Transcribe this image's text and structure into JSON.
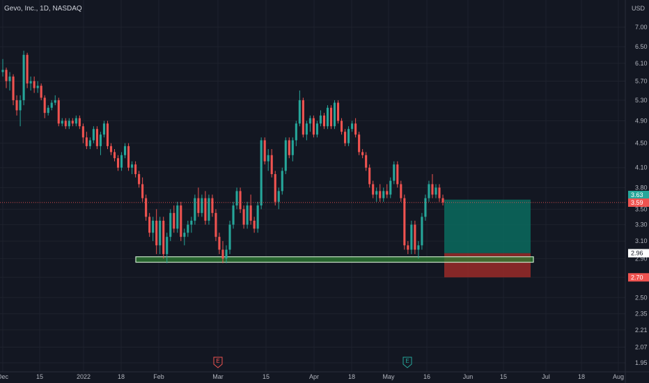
{
  "symbol_legend": "Gevo, Inc., 1D, NASDAQ",
  "currency": "USD",
  "colors": {
    "background": "#131722",
    "up": "#26a69a",
    "down": "#ef5350",
    "grid": "#1e222d",
    "profit_zone": "#0b6b5e",
    "loss_zone": "#9a2a28",
    "support_zone": "#2e7d32",
    "current_price_line": "#ef5350"
  },
  "chart_data": {
    "type": "candlestick",
    "scale": "log",
    "y_ticks": [
      "7.00",
      "6.50",
      "6.10",
      "5.70",
      "5.30",
      "4.90",
      "4.50",
      "4.10",
      "3.80",
      "3.50",
      "3.30",
      "3.10",
      "2.90",
      "2.70",
      "2.50",
      "2.35",
      "2.21",
      "2.07",
      "1.95"
    ],
    "x_ticks": [
      "Dec",
      "15",
      "2022",
      "18",
      "Feb",
      "Mar",
      "15",
      "Apr",
      "18",
      "May",
      "16",
      "Jun",
      "15",
      "Jul",
      "18",
      "Aug"
    ],
    "price_labels": [
      {
        "label": "3.63",
        "value": 3.63,
        "color": "#26a69a"
      },
      {
        "label": "3.59",
        "value": 3.59,
        "color": "#ef5350"
      },
      {
        "label": "2.96",
        "value": 2.96,
        "color": "#ffffff"
      },
      {
        "label": "2.70",
        "value": 2.7,
        "color": "#ef5350"
      }
    ],
    "last_price": 3.59,
    "support_zone": {
      "low": 2.86,
      "high": 2.92
    },
    "position": {
      "entry": 2.96,
      "target": 3.63,
      "stop": 2.7
    },
    "earnings_markers": [
      "E",
      "E"
    ],
    "candles": [
      [
        5.9,
        6.2,
        5.8,
        5.95
      ],
      [
        5.95,
        6.0,
        5.55,
        5.7
      ],
      [
        5.7,
        5.9,
        5.5,
        5.8
      ],
      [
        5.8,
        5.85,
        5.2,
        5.3
      ],
      [
        5.3,
        5.4,
        5.0,
        5.1
      ],
      [
        5.1,
        5.4,
        4.8,
        5.3
      ],
      [
        5.3,
        6.4,
        5.2,
        6.3
      ],
      [
        6.3,
        6.35,
        5.55,
        5.65
      ],
      [
        5.65,
        5.8,
        5.5,
        5.7
      ],
      [
        5.7,
        5.8,
        5.45,
        5.55
      ],
      [
        5.55,
        5.7,
        5.45,
        5.6
      ],
      [
        5.6,
        5.65,
        5.3,
        5.35
      ],
      [
        5.35,
        5.4,
        4.95,
        5.05
      ],
      [
        5.05,
        5.2,
        5.0,
        5.15
      ],
      [
        5.15,
        5.3,
        5.1,
        5.25
      ],
      [
        5.25,
        5.4,
        5.2,
        5.3
      ],
      [
        5.3,
        5.35,
        4.8,
        4.85
      ],
      [
        4.85,
        4.95,
        4.8,
        4.9
      ],
      [
        4.9,
        4.95,
        4.75,
        4.8
      ],
      [
        4.8,
        4.95,
        4.75,
        4.9
      ],
      [
        4.9,
        4.95,
        4.8,
        4.85
      ],
      [
        4.85,
        5.0,
        4.8,
        4.95
      ],
      [
        4.95,
        5.0,
        4.75,
        4.8
      ],
      [
        4.8,
        4.85,
        4.5,
        4.6
      ],
      [
        4.6,
        4.7,
        4.4,
        4.45
      ],
      [
        4.45,
        4.6,
        4.4,
        4.55
      ],
      [
        4.55,
        4.8,
        4.5,
        4.75
      ],
      [
        4.75,
        4.8,
        4.4,
        4.45
      ],
      [
        4.45,
        4.7,
        4.3,
        4.65
      ],
      [
        4.65,
        4.9,
        4.6,
        4.85
      ],
      [
        4.85,
        4.9,
        4.4,
        4.45
      ],
      [
        4.45,
        4.5,
        4.3,
        4.35
      ],
      [
        4.35,
        4.4,
        4.2,
        4.25
      ],
      [
        4.25,
        4.3,
        4.05,
        4.1
      ],
      [
        4.1,
        4.35,
        4.05,
        4.3
      ],
      [
        4.3,
        4.5,
        4.25,
        4.45
      ],
      [
        4.45,
        4.5,
        4.05,
        4.1
      ],
      [
        4.1,
        4.2,
        4.0,
        4.15
      ],
      [
        4.15,
        4.2,
        3.95,
        4.0
      ],
      [
        4.0,
        4.05,
        3.8,
        3.85
      ],
      [
        3.85,
        3.95,
        3.6,
        3.65
      ],
      [
        3.65,
        3.7,
        3.35,
        3.4
      ],
      [
        3.4,
        3.45,
        3.15,
        3.2
      ],
      [
        3.2,
        3.4,
        3.1,
        3.35
      ],
      [
        3.35,
        3.5,
        2.95,
        3.05
      ],
      [
        3.05,
        3.4,
        2.95,
        3.35
      ],
      [
        3.35,
        3.4,
        2.9,
        2.95
      ],
      [
        2.95,
        3.2,
        2.85,
        3.15
      ],
      [
        3.15,
        3.5,
        3.1,
        3.45
      ],
      [
        3.45,
        3.55,
        3.2,
        3.25
      ],
      [
        3.25,
        3.6,
        3.2,
        3.55
      ],
      [
        3.55,
        3.6,
        3.1,
        3.15
      ],
      [
        3.15,
        3.25,
        3.05,
        3.2
      ],
      [
        3.2,
        3.35,
        3.15,
        3.3
      ],
      [
        3.3,
        3.4,
        3.2,
        3.35
      ],
      [
        3.35,
        3.7,
        3.3,
        3.65
      ],
      [
        3.65,
        3.8,
        3.4,
        3.45
      ],
      [
        3.45,
        3.7,
        3.4,
        3.65
      ],
      [
        3.65,
        3.75,
        3.3,
        3.35
      ],
      [
        3.35,
        3.7,
        3.3,
        3.65
      ],
      [
        3.65,
        3.7,
        3.4,
        3.45
      ],
      [
        3.45,
        3.5,
        3.1,
        3.15
      ],
      [
        3.15,
        3.2,
        2.95,
        3.0
      ],
      [
        3.0,
        3.1,
        2.85,
        2.9
      ],
      [
        2.9,
        3.05,
        2.85,
        3.0
      ],
      [
        3.0,
        3.35,
        2.95,
        3.3
      ],
      [
        3.3,
        3.6,
        3.25,
        3.55
      ],
      [
        3.55,
        3.8,
        3.5,
        3.75
      ],
      [
        3.75,
        3.8,
        3.45,
        3.5
      ],
      [
        3.5,
        3.55,
        3.25,
        3.3
      ],
      [
        3.3,
        3.6,
        3.25,
        3.55
      ],
      [
        3.55,
        3.7,
        3.3,
        3.35
      ],
      [
        3.35,
        3.4,
        3.2,
        3.25
      ],
      [
        3.25,
        3.6,
        3.2,
        3.55
      ],
      [
        3.55,
        4.6,
        3.5,
        4.55
      ],
      [
        4.55,
        4.6,
        4.15,
        4.2
      ],
      [
        4.2,
        4.4,
        4.05,
        4.3
      ],
      [
        4.3,
        4.4,
        3.95,
        4.0
      ],
      [
        4.0,
        4.05,
        3.55,
        3.6
      ],
      [
        3.6,
        3.8,
        3.5,
        3.75
      ],
      [
        3.75,
        4.1,
        3.7,
        4.05
      ],
      [
        4.05,
        4.6,
        4.0,
        4.55
      ],
      [
        4.55,
        4.6,
        4.25,
        4.3
      ],
      [
        4.3,
        4.6,
        4.2,
        4.55
      ],
      [
        4.55,
        4.9,
        4.45,
        4.85
      ],
      [
        4.85,
        5.5,
        4.8,
        5.3
      ],
      [
        5.3,
        5.35,
        4.6,
        4.65
      ],
      [
        4.65,
        4.9,
        4.55,
        4.85
      ],
      [
        4.85,
        5.0,
        4.7,
        4.95
      ],
      [
        4.95,
        5.0,
        4.6,
        4.65
      ],
      [
        4.65,
        4.9,
        4.6,
        4.85
      ],
      [
        4.85,
        5.1,
        4.8,
        5.0
      ],
      [
        5.0,
        5.05,
        4.75,
        4.8
      ],
      [
        4.8,
        5.2,
        4.75,
        5.15
      ],
      [
        5.15,
        5.2,
        4.75,
        4.8
      ],
      [
        4.8,
        5.3,
        4.75,
        5.25
      ],
      [
        5.25,
        5.3,
        4.85,
        4.9
      ],
      [
        4.9,
        4.95,
        4.65,
        4.7
      ],
      [
        4.7,
        4.75,
        4.45,
        4.5
      ],
      [
        4.5,
        4.8,
        4.45,
        4.75
      ],
      [
        4.75,
        4.9,
        4.7,
        4.85
      ],
      [
        4.85,
        4.95,
        4.6,
        4.65
      ],
      [
        4.65,
        4.7,
        4.3,
        4.35
      ],
      [
        4.35,
        4.4,
        4.25,
        4.3
      ],
      [
        4.3,
        4.35,
        4.05,
        4.1
      ],
      [
        4.1,
        4.15,
        3.8,
        3.85
      ],
      [
        3.85,
        3.9,
        3.65,
        3.7
      ],
      [
        3.7,
        3.8,
        3.6,
        3.75
      ],
      [
        3.75,
        3.85,
        3.6,
        3.65
      ],
      [
        3.65,
        3.8,
        3.6,
        3.75
      ],
      [
        3.75,
        3.85,
        3.65,
        3.7
      ],
      [
        3.7,
        3.95,
        3.65,
        3.9
      ],
      [
        3.9,
        4.2,
        3.85,
        4.15
      ],
      [
        4.15,
        4.2,
        3.8,
        3.85
      ],
      [
        3.85,
        3.9,
        3.6,
        3.65
      ],
      [
        3.65,
        3.7,
        3.0,
        3.05
      ],
      [
        3.05,
        3.1,
        2.95,
        3.0
      ],
      [
        3.0,
        3.35,
        2.95,
        3.3
      ],
      [
        3.3,
        3.35,
        2.95,
        3.0
      ],
      [
        3.0,
        3.1,
        2.9,
        3.05
      ],
      [
        3.05,
        3.45,
        3.0,
        3.4
      ],
      [
        3.4,
        3.7,
        3.35,
        3.65
      ],
      [
        3.65,
        3.9,
        3.6,
        3.85
      ],
      [
        3.85,
        4.0,
        3.65,
        3.7
      ],
      [
        3.7,
        3.85,
        3.65,
        3.8
      ],
      [
        3.8,
        3.85,
        3.6,
        3.65
      ],
      [
        3.65,
        3.7,
        3.55,
        3.59
      ]
    ]
  }
}
